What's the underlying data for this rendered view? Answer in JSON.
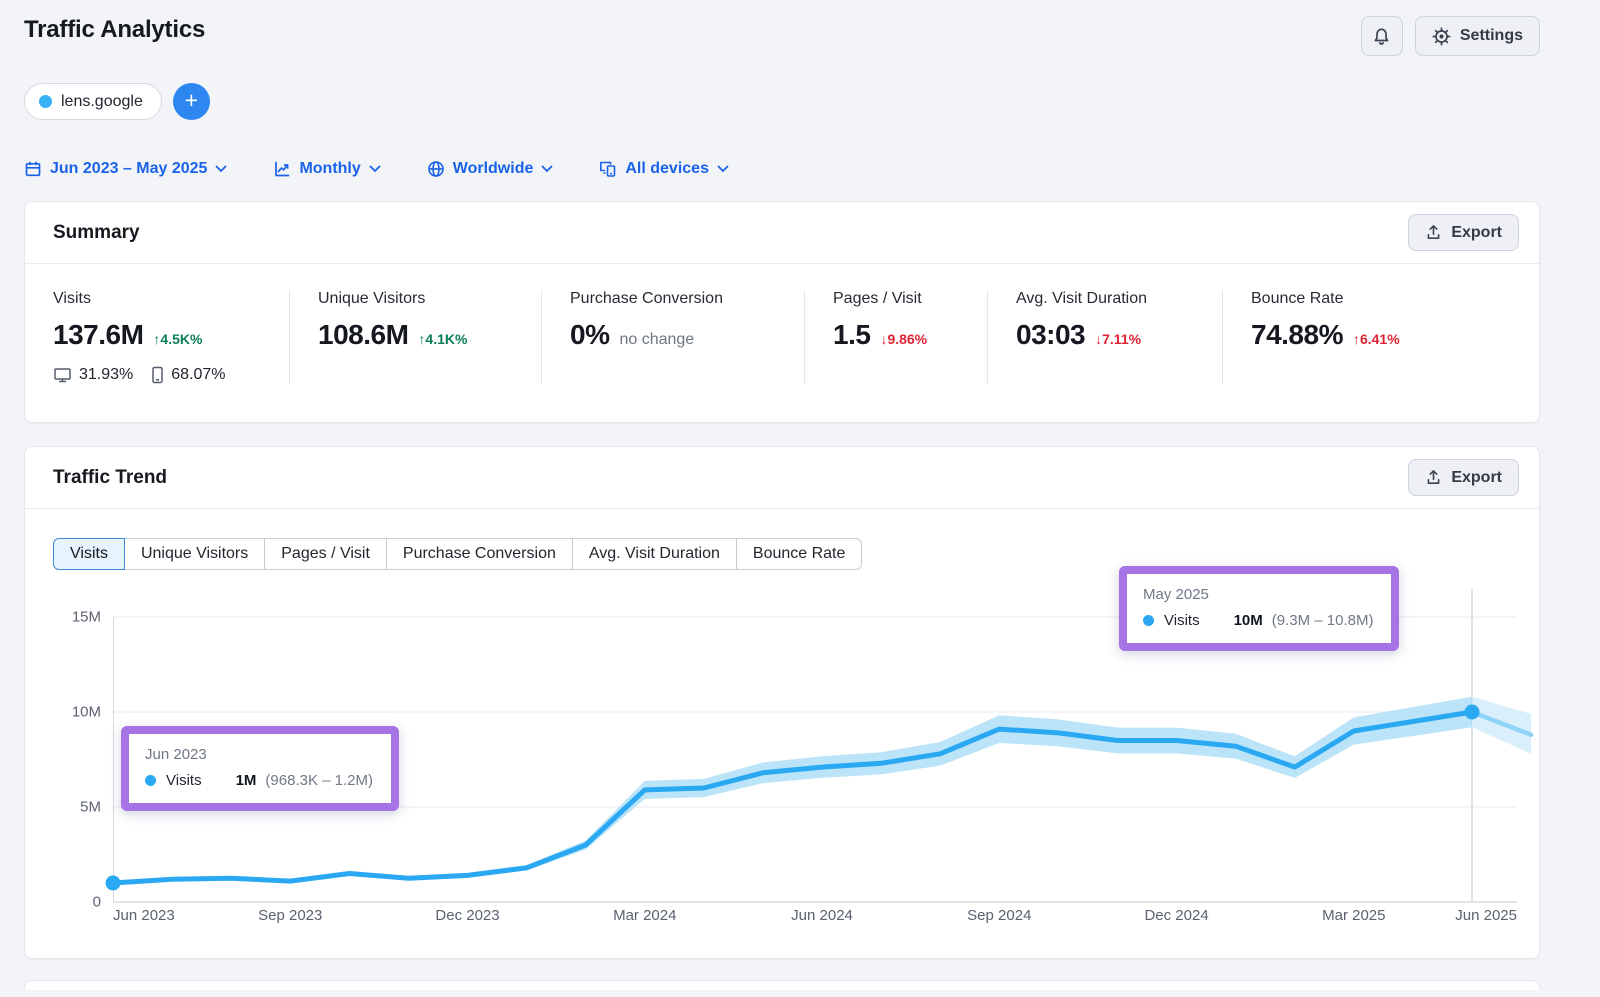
{
  "header": {
    "title": "Traffic Analytics",
    "settings_label": "Settings"
  },
  "targets": {
    "chip_label": "lens.google",
    "add_label": "+"
  },
  "filters": {
    "date_range": "Jun 2023 – May 2025",
    "granularity": "Monthly",
    "region": "Worldwide",
    "devices": "All devices"
  },
  "summary": {
    "title": "Summary",
    "export_label": "Export",
    "metrics": [
      {
        "label": "Visits",
        "value": "137.6M",
        "delta": "↑4.5K%",
        "desktop_share": "31.93%",
        "mobile_share": "68.07%"
      },
      {
        "label": "Unique Visitors",
        "value": "108.6M",
        "delta": "↑4.1K%"
      },
      {
        "label": "Purchase Conversion",
        "value": "0%",
        "note": "no change"
      },
      {
        "label": "Pages / Visit",
        "value": "1.5",
        "delta": "↓9.86%"
      },
      {
        "label": "Avg. Visit Duration",
        "value": "03:03",
        "delta": "↓7.11%"
      },
      {
        "label": "Bounce Rate",
        "value": "74.88%",
        "delta": "↑6.41%"
      }
    ]
  },
  "trend": {
    "title": "Traffic Trend",
    "export_label": "Export",
    "tabs": [
      "Visits",
      "Unique Visitors",
      "Pages / Visit",
      "Purchase Conversion",
      "Avg. Visit Duration",
      "Bounce Rate"
    ],
    "active_tab": "Visits",
    "tooltips": [
      {
        "title": "Jun 2023",
        "series": "Visits",
        "value": "1M",
        "range": "(968.3K – 1.2M)"
      },
      {
        "title": "May 2025",
        "series": "Visits",
        "value": "10M",
        "range": "(9.3M – 10.8M)"
      }
    ]
  },
  "chart_data": {
    "type": "line",
    "title": "Traffic Trend — Visits",
    "legend": [
      "Visits"
    ],
    "x": [
      "Jun 2023",
      "Jul 2023",
      "Aug 2023",
      "Sep 2023",
      "Oct 2023",
      "Nov 2023",
      "Dec 2023",
      "Jan 2024",
      "Feb 2024",
      "Mar 2024",
      "Apr 2024",
      "May 2024",
      "Jun 2024",
      "Jul 2024",
      "Aug 2024",
      "Sep 2024",
      "Oct 2024",
      "Nov 2024",
      "Dec 2024",
      "Jan 2025",
      "Feb 2025",
      "Mar 2025",
      "Apr 2025",
      "May 2025"
    ],
    "series": [
      {
        "name": "Visits",
        "unit": "millions of visits",
        "values_m": [
          1.0,
          1.2,
          1.25,
          1.1,
          1.5,
          1.25,
          1.4,
          1.8,
          3.0,
          5.9,
          6.0,
          6.8,
          7.1,
          7.3,
          7.8,
          9.1,
          8.9,
          8.5,
          8.5,
          8.2,
          7.1,
          9.0,
          9.5,
          10.0
        ]
      }
    ],
    "band_pct": 0.08,
    "forecast": {
      "x": "Jun 2025",
      "value_m": 8.8,
      "upper_m": 9.9,
      "lower_m": 7.8
    },
    "markers": [
      {
        "index": 0,
        "value_label": "1M"
      },
      {
        "index": 23,
        "value_label": "10M"
      }
    ],
    "crosshair_index": 23,
    "ylim_m": [
      0,
      15
    ],
    "y_ticks": [
      {
        "value_m": 0,
        "label": "0"
      },
      {
        "value_m": 5,
        "label": "5M"
      },
      {
        "value_m": 10,
        "label": "10M"
      },
      {
        "value_m": 15,
        "label": "15M"
      }
    ],
    "x_tick_labels": [
      "Jun 2023",
      "Sep 2023",
      "Dec 2023",
      "Mar 2024",
      "Jun 2024",
      "Sep 2024",
      "Dec 2024",
      "Mar 2025",
      "Jun 2025"
    ],
    "grid": true,
    "colors": {
      "line": "#2ba8f2",
      "band": "#aaddf8",
      "forecast_line": "#8fd3f7",
      "forecast_band": "#d3ecfb",
      "crosshair": "#c7cbd3",
      "tooltip_border": "#a674e4"
    }
  }
}
